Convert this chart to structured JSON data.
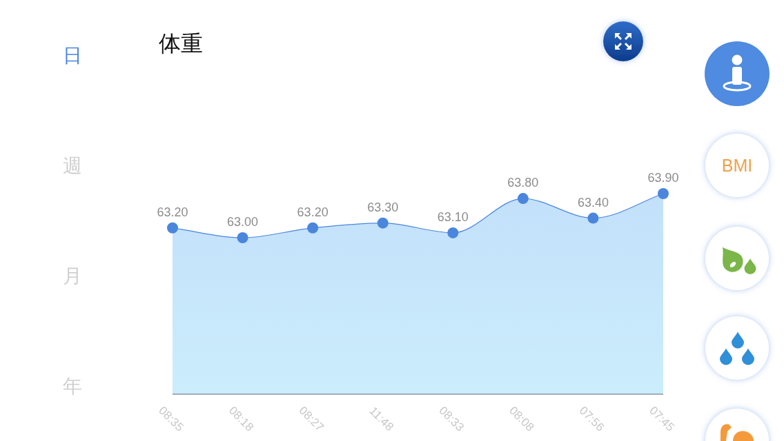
{
  "chart_data": {
    "type": "area",
    "title": "体重",
    "categories": [
      "08:35",
      "08:18",
      "08:27",
      "11:48",
      "08:33",
      "08:08",
      "07:56",
      "07:45"
    ],
    "values": [
      63.2,
      63.0,
      63.2,
      63.3,
      63.1,
      63.8,
      63.4,
      63.9
    ],
    "value_labels": [
      "63.20",
      "63.00",
      "63.20",
      "63.30",
      "63.10",
      "63.80",
      "63.40",
      "63.90"
    ],
    "color": "#4a86dc",
    "marker": "circle",
    "tick_labels": "x",
    "grid": false,
    "annotations": [
      "日",
      "週",
      "月",
      "年",
      "BMI"
    ]
  }
}
